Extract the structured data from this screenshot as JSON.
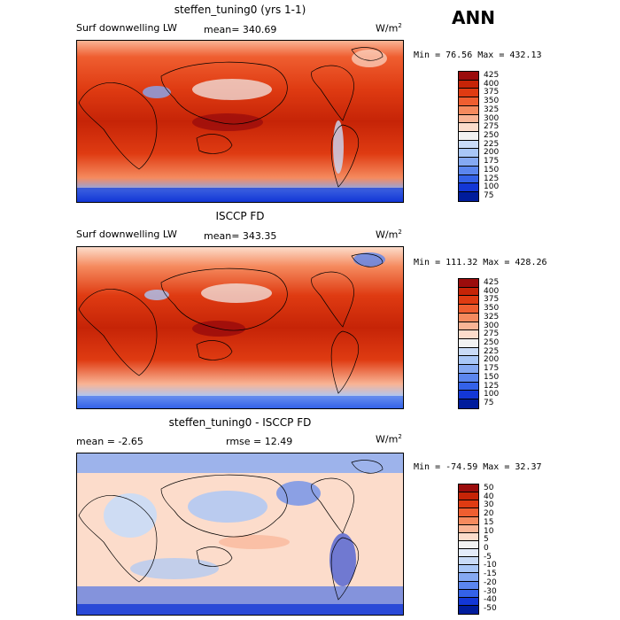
{
  "season": "ANN",
  "chart_data": [
    {
      "type": "heatmap",
      "title": "steffen_tuning0 (yrs 1-1)",
      "variable": "Surf downwelling LW",
      "stat_text": "mean= 340.69",
      "units_base": "W/m",
      "units_exp": "2",
      "minmax_text": "Min =  76.56 Max = 432.13",
      "colorbar_levels": [
        "425",
        "400",
        "375",
        "350",
        "325",
        "300",
        "275",
        "250",
        "225",
        "200",
        "175",
        "150",
        "125",
        "100",
        "75"
      ],
      "colorbar_colors": [
        "#9b0c0c",
        "#c62407",
        "#df3b12",
        "#ef5e30",
        "#f58a5e",
        "#f9b495",
        "#fcdccb",
        "#f2f2f2",
        "#c9dbf7",
        "#a9c7f7",
        "#85a9f2",
        "#5b86ee",
        "#3462e8",
        "#1337d6",
        "#001c9c"
      ]
    },
    {
      "type": "heatmap",
      "title": "ISCCP FD",
      "variable": "Surf downwelling LW",
      "stat_text": "mean= 343.35",
      "units_base": "W/m",
      "units_exp": "2",
      "minmax_text": "Min = 111.32 Max = 428.26",
      "colorbar_levels": [
        "425",
        "400",
        "375",
        "350",
        "325",
        "300",
        "275",
        "250",
        "225",
        "200",
        "175",
        "150",
        "125",
        "100",
        "75"
      ],
      "colorbar_colors": [
        "#9b0c0c",
        "#c62407",
        "#df3b12",
        "#ef5e30",
        "#f58a5e",
        "#f9b495",
        "#fcdccb",
        "#f2f2f2",
        "#c9dbf7",
        "#a9c7f7",
        "#85a9f2",
        "#5b86ee",
        "#3462e8",
        "#1337d6",
        "#001c9c"
      ]
    },
    {
      "type": "heatmap",
      "title": "steffen_tuning0 - ISCCP FD",
      "stat_left": "mean =   -2.65",
      "stat_right": "rmse =   12.49",
      "units_base": "W/m",
      "units_exp": "2",
      "minmax_text": "Min = -74.59 Max =  32.37",
      "colorbar_levels": [
        "50",
        "40",
        "30",
        "20",
        "15",
        "10",
        "5",
        "0",
        "-5",
        "-10",
        "-15",
        "-20",
        "-30",
        "-40",
        "-50"
      ],
      "colorbar_colors": [
        "#9b0c0c",
        "#c62407",
        "#df3b12",
        "#ef5e30",
        "#f58a5e",
        "#f9b495",
        "#fcdccb",
        "#f2f2f2",
        "#e4ecfa",
        "#c9dbf7",
        "#a9c7f7",
        "#85a9f2",
        "#5b86ee",
        "#3462e8",
        "#1337d6",
        "#001c9c"
      ]
    }
  ]
}
